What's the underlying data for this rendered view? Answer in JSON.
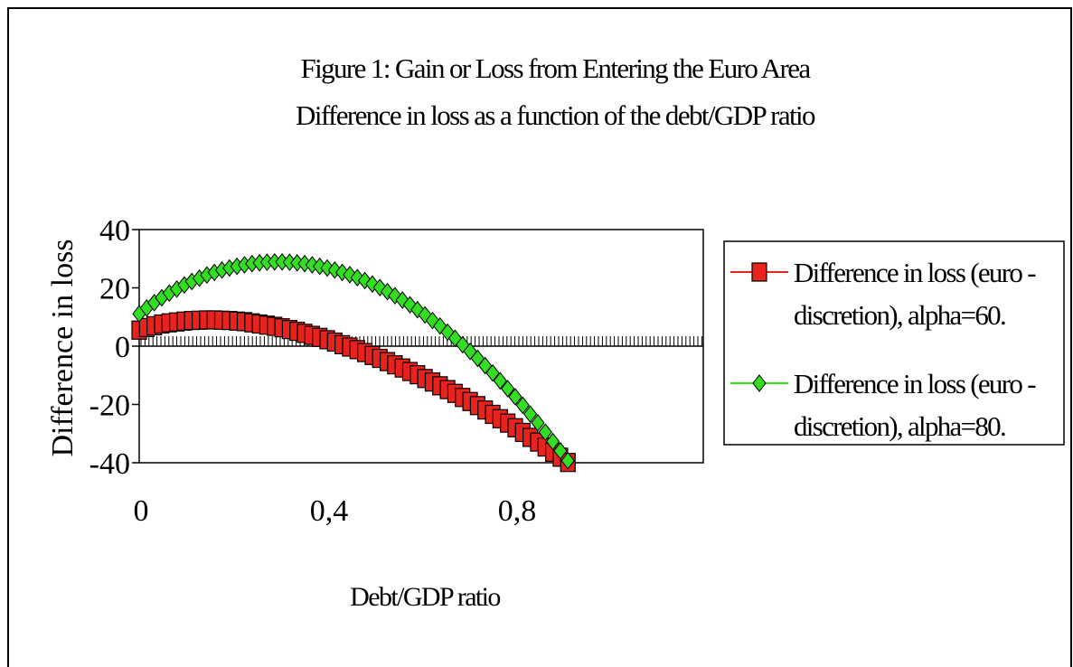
{
  "chart_data": {
    "type": "scatter",
    "title": "Figure 1: Gain or Loss from Entering the Euro Area",
    "subtitle": "Difference in loss as a function of the debt/GDP ratio",
    "xlabel": "Debt/GDP ratio",
    "ylabel": "Difference in loss",
    "xlim": [
      0,
      1.2
    ],
    "ylim": [
      -40,
      40
    ],
    "x_ticks": [
      "0",
      "0,4",
      "0,8"
    ],
    "x_tick_values": [
      0,
      0.4,
      0.8
    ],
    "y_ticks": [
      "40",
      "20",
      "0",
      "-20",
      "-40"
    ],
    "y_tick_values": [
      40,
      20,
      0,
      -20,
      -40
    ],
    "legend_position": "right",
    "grid": false,
    "series": [
      {
        "name": "Difference in loss (euro - discretion), alpha=60.",
        "marker": "square",
        "color": "#e8221c",
        "x": [
          0.0,
          0.016,
          0.032,
          0.048,
          0.064,
          0.08,
          0.096,
          0.112,
          0.128,
          0.144,
          0.16,
          0.176,
          0.192,
          0.208,
          0.224,
          0.24,
          0.256,
          0.272,
          0.288,
          0.304,
          0.32,
          0.336,
          0.352,
          0.368,
          0.384,
          0.4,
          0.416,
          0.432,
          0.448,
          0.464,
          0.48,
          0.496,
          0.512,
          0.528,
          0.544,
          0.56,
          0.576,
          0.592,
          0.608,
          0.624,
          0.64,
          0.656,
          0.672,
          0.688,
          0.704,
          0.72,
          0.736,
          0.752,
          0.768,
          0.784,
          0.8,
          0.816,
          0.832,
          0.848,
          0.864,
          0.88,
          0.896,
          0.912,
          0.928,
          0.944,
          0.96
        ],
        "y": [
          5.5,
          6.4,
          7.0,
          7.6,
          8.0,
          8.3,
          8.6,
          8.8,
          8.9,
          9.0,
          9.0,
          8.9,
          8.8,
          8.6,
          8.4,
          8.0,
          7.6,
          7.2,
          6.8,
          6.3,
          5.7,
          5.1,
          4.4,
          3.7,
          3.0,
          2.2,
          1.4,
          0.5,
          -0.3,
          -1.2,
          -2.2,
          -3.2,
          -4.2,
          -5.3,
          -6.4,
          -7.5,
          -8.7,
          -9.8,
          -11.1,
          -12.3,
          -13.6,
          -14.9,
          -16.2,
          -17.6,
          -19.0,
          -20.4,
          -21.9,
          -23.4,
          -24.9,
          -26.4,
          -28.0,
          -29.6,
          -31.3,
          -32.9,
          -34.6,
          -36.4,
          -38.1,
          -39.9,
          -41.7,
          -43.6,
          -45.5
        ]
      },
      {
        "name": "Difference in loss (euro - discretion), alpha=80.",
        "marker": "diamond",
        "color": "#33dd22",
        "x": [
          0.0,
          0.016,
          0.032,
          0.048,
          0.064,
          0.08,
          0.096,
          0.112,
          0.128,
          0.144,
          0.16,
          0.176,
          0.192,
          0.208,
          0.224,
          0.24,
          0.256,
          0.272,
          0.288,
          0.304,
          0.32,
          0.336,
          0.352,
          0.368,
          0.384,
          0.4,
          0.416,
          0.432,
          0.448,
          0.464,
          0.48,
          0.496,
          0.512,
          0.528,
          0.544,
          0.56,
          0.576,
          0.592,
          0.608,
          0.624,
          0.64,
          0.656,
          0.672,
          0.688,
          0.704,
          0.72,
          0.736,
          0.752,
          0.768,
          0.784,
          0.8,
          0.816,
          0.832,
          0.848,
          0.864,
          0.88,
          0.896,
          0.912,
          0.928,
          0.944,
          0.96
        ],
        "y": [
          11.1,
          13.1,
          14.9,
          16.6,
          18.2,
          19.6,
          21.0,
          22.2,
          23.3,
          24.4,
          25.3,
          26.1,
          26.8,
          27.4,
          27.9,
          28.3,
          28.6,
          28.8,
          28.9,
          28.9,
          28.8,
          28.6,
          28.3,
          27.9,
          27.4,
          26.8,
          26.1,
          25.3,
          24.5,
          23.5,
          22.5,
          21.3,
          20.1,
          18.7,
          17.3,
          15.8,
          14.2,
          12.5,
          10.7,
          8.8,
          6.9,
          4.8,
          2.7,
          0.5,
          -1.8,
          -4.2,
          -6.7,
          -9.2,
          -11.9,
          -14.6,
          -17.4,
          -20.3,
          -23.3,
          -26.3,
          -29.5,
          -32.7,
          -35.9,
          -39.3,
          -42.7,
          -46.2,
          -49.8
        ]
      }
    ]
  }
}
